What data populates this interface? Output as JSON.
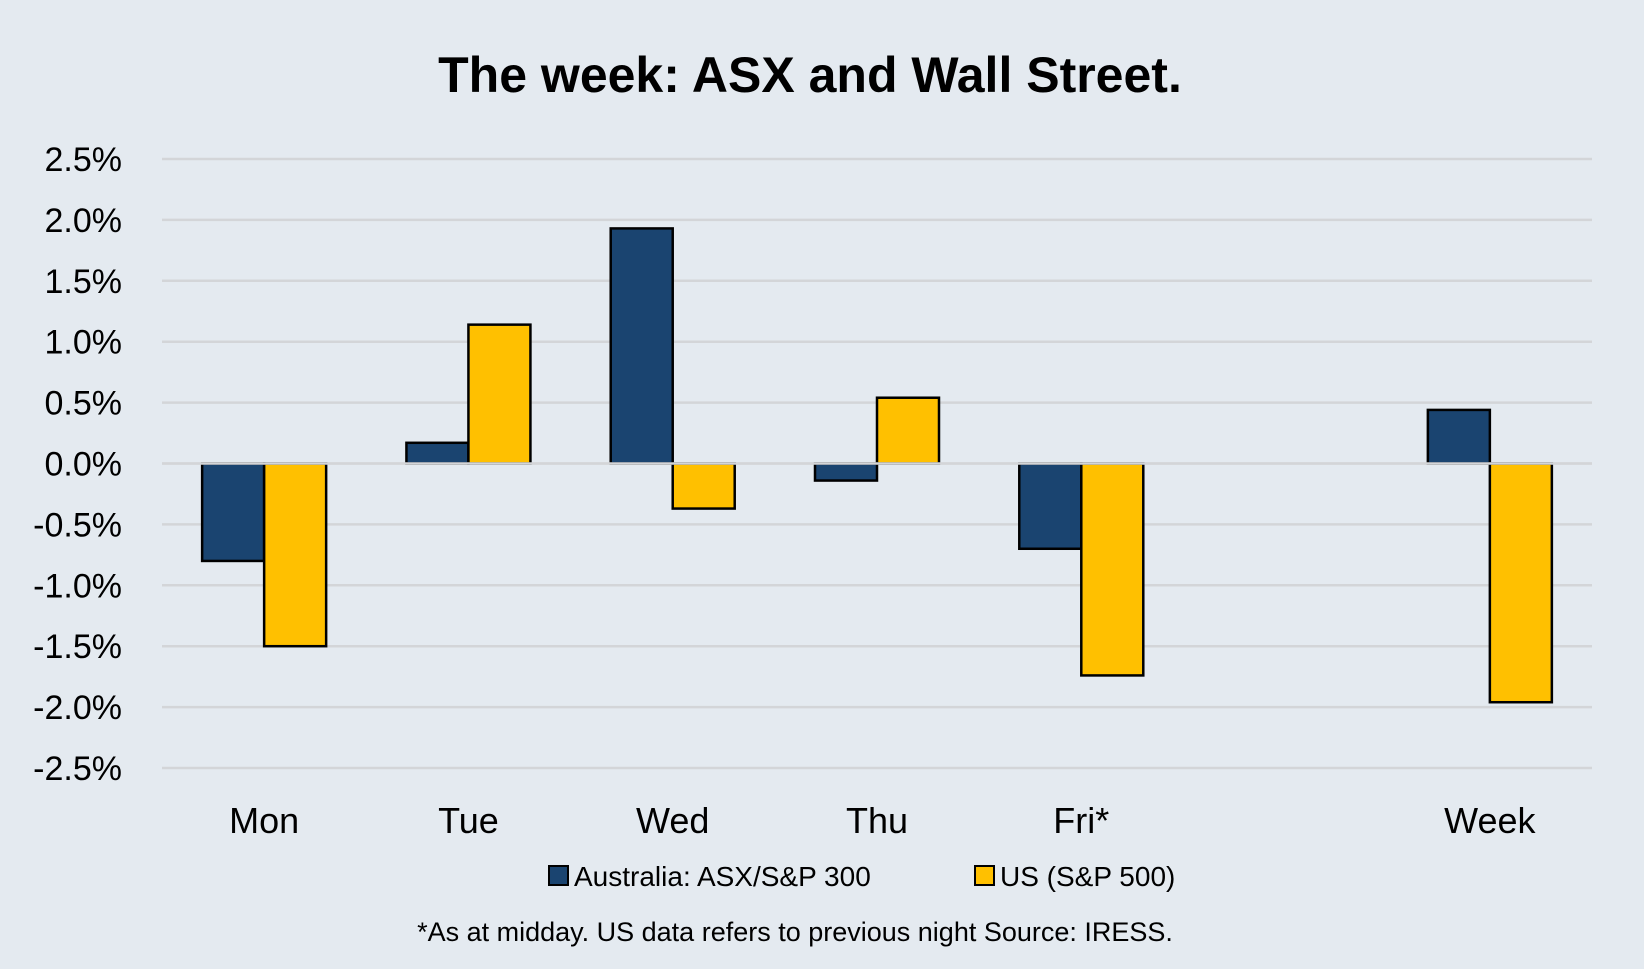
{
  "chart_data": {
    "type": "bar",
    "title": "The week:  ASX and Wall Street.",
    "xlabel": "",
    "ylabel": "",
    "ylim": [
      -2.5,
      2.5
    ],
    "yticks": [
      "2.5%",
      "2.0%",
      "1.5%",
      "1.0%",
      "0.5%",
      "0.0%",
      "-0.5%",
      "-1.0%",
      "-1.5%",
      "-2.0%",
      "-2.5%"
    ],
    "ytick_values": [
      2.5,
      2.0,
      1.5,
      1.0,
      0.5,
      0.0,
      -0.5,
      -1.0,
      -1.5,
      -2.0,
      -2.5
    ],
    "categories": [
      "Mon",
      "Tue",
      "Wed",
      "Thu",
      "Fri*",
      "",
      "Week"
    ],
    "series": [
      {
        "name": "Australia: ASX/S&P 300",
        "color": "#1a4470",
        "values": [
          -0.8,
          0.17,
          1.93,
          -0.14,
          -0.7,
          null,
          0.44
        ]
      },
      {
        "name": "US (S&P 500)",
        "color": "#ffc000",
        "values": [
          -1.5,
          1.14,
          -0.37,
          0.54,
          -1.74,
          null,
          -1.96
        ]
      }
    ],
    "grid": true,
    "legend_position": "bottom",
    "footnote": "*As at midday. US data refers to previous night  Source:  IRESS."
  }
}
